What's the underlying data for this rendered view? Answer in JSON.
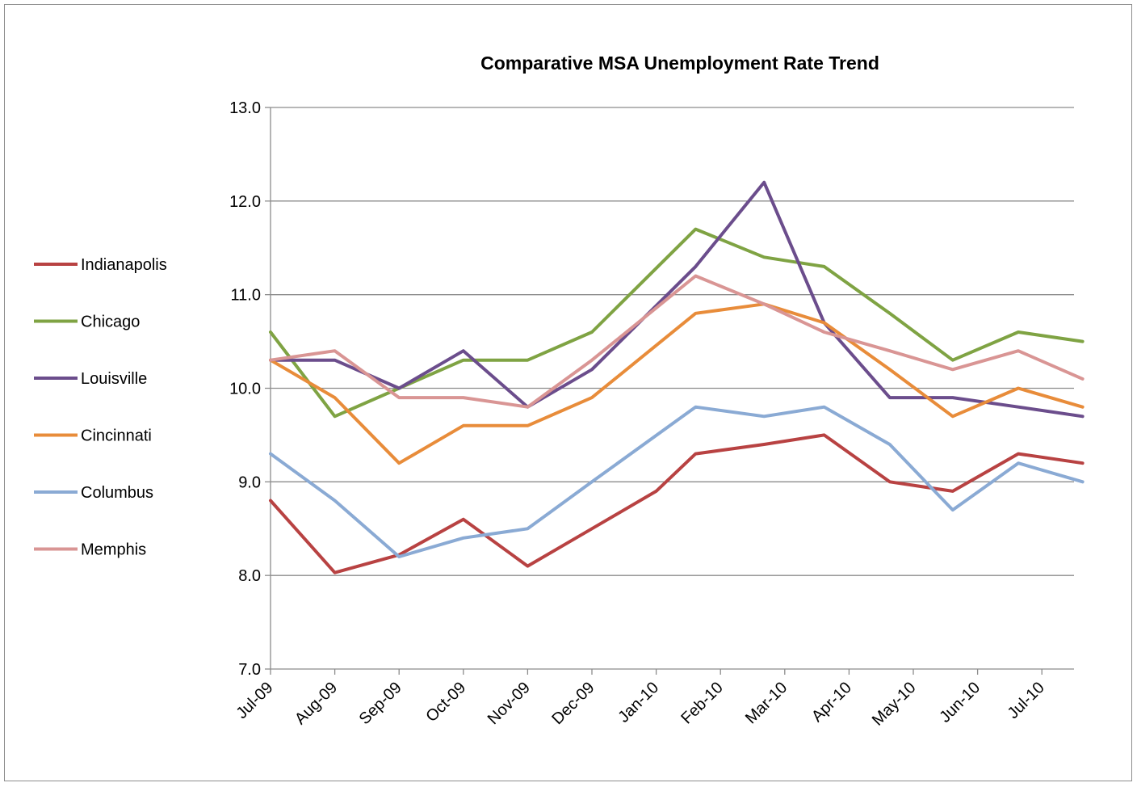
{
  "chart_data": {
    "type": "line",
    "title": "Comparative MSA Unemployment Rate Trend",
    "xlabel": "",
    "ylabel": "",
    "ylim": [
      7.0,
      13.0
    ],
    "y_ticks": [
      "7.0",
      "8.0",
      "9.0",
      "10.0",
      "11.0",
      "12.0",
      "13.0"
    ],
    "x_tick_labels": [
      "Jul-09",
      "Aug-09",
      "Sep-09",
      "Oct-09",
      "Nov-09",
      "Dec-09",
      "Jan-10",
      "Feb-10",
      "Mar-10",
      "Apr-10",
      "May-10",
      "Jun-10",
      "Jul-10"
    ],
    "grid": "horizontal",
    "legend_position": "left",
    "series": [
      {
        "name": "Indianapolis",
        "color": "#b84242",
        "points": [
          [
            "2009-07-01",
            8.8
          ],
          [
            "2009-08-01",
            8.03
          ],
          [
            "2009-09-01",
            8.22
          ],
          [
            "2009-10-01",
            8.6
          ],
          [
            "2009-11-01",
            8.1
          ],
          [
            "2009-12-01",
            8.5
          ],
          [
            "2010-01-01",
            8.9
          ],
          [
            "2010-01-20",
            9.3
          ],
          [
            "2010-02-20",
            9.4
          ],
          [
            "2010-03-20",
            9.5
          ],
          [
            "2010-04-20",
            9.0
          ],
          [
            "2010-05-20",
            8.9
          ],
          [
            "2010-06-20",
            9.3
          ],
          [
            "2010-07-20",
            9.2
          ]
        ]
      },
      {
        "name": "Chicago",
        "color": "#7fa343",
        "points": [
          [
            "2009-07-01",
            10.6
          ],
          [
            "2009-08-01",
            9.7
          ],
          [
            "2009-09-01",
            10.0
          ],
          [
            "2009-10-01",
            10.3
          ],
          [
            "2009-11-01",
            10.3
          ],
          [
            "2009-12-01",
            10.6
          ],
          [
            "2010-01-20",
            11.7
          ],
          [
            "2010-02-20",
            11.4
          ],
          [
            "2010-03-20",
            11.3
          ],
          [
            "2010-04-20",
            10.8
          ],
          [
            "2010-05-20",
            10.3
          ],
          [
            "2010-06-20",
            10.6
          ],
          [
            "2010-07-20",
            10.5
          ]
        ]
      },
      {
        "name": "Louisville",
        "color": "#6b4d8c",
        "points": [
          [
            "2009-07-01",
            10.3
          ],
          [
            "2009-08-01",
            10.3
          ],
          [
            "2009-09-01",
            10.0
          ],
          [
            "2009-10-01",
            10.4
          ],
          [
            "2009-11-01",
            9.8
          ],
          [
            "2009-12-01",
            10.2
          ],
          [
            "2010-01-20",
            11.3
          ],
          [
            "2010-02-20",
            12.2
          ],
          [
            "2010-03-20",
            10.7
          ],
          [
            "2010-04-20",
            9.9
          ],
          [
            "2010-05-20",
            9.9
          ],
          [
            "2010-06-20",
            9.8
          ],
          [
            "2010-07-20",
            9.7
          ]
        ]
      },
      {
        "name": "Cincinnati",
        "color": "#e88c3a",
        "points": [
          [
            "2009-07-01",
            10.3
          ],
          [
            "2009-08-01",
            9.9
          ],
          [
            "2009-09-01",
            9.2
          ],
          [
            "2009-10-01",
            9.6
          ],
          [
            "2009-11-01",
            9.6
          ],
          [
            "2009-12-01",
            9.9
          ],
          [
            "2010-01-20",
            10.8
          ],
          [
            "2010-02-20",
            10.9
          ],
          [
            "2010-03-20",
            10.7
          ],
          [
            "2010-04-20",
            10.2
          ],
          [
            "2010-05-20",
            9.7
          ],
          [
            "2010-06-20",
            10.0
          ],
          [
            "2010-07-20",
            9.8
          ]
        ]
      },
      {
        "name": "Columbus",
        "color": "#8aaad4",
        "points": [
          [
            "2009-07-01",
            9.3
          ],
          [
            "2009-08-01",
            8.8
          ],
          [
            "2009-09-01",
            8.2
          ],
          [
            "2009-10-01",
            8.4
          ],
          [
            "2009-11-01",
            8.5
          ],
          [
            "2009-12-01",
            9.0
          ],
          [
            "2010-01-20",
            9.8
          ],
          [
            "2010-02-20",
            9.7
          ],
          [
            "2010-03-20",
            9.8
          ],
          [
            "2010-04-20",
            9.4
          ],
          [
            "2010-05-20",
            8.7
          ],
          [
            "2010-06-20",
            9.2
          ],
          [
            "2010-07-20",
            9.0
          ]
        ]
      },
      {
        "name": "Memphis",
        "color": "#d99594",
        "points": [
          [
            "2009-07-01",
            10.3
          ],
          [
            "2009-08-01",
            10.4
          ],
          [
            "2009-09-01",
            9.9
          ],
          [
            "2009-10-01",
            9.9
          ],
          [
            "2009-11-01",
            9.8
          ],
          [
            "2009-12-01",
            10.3
          ],
          [
            "2010-01-20",
            11.2
          ],
          [
            "2010-02-20",
            10.9
          ],
          [
            "2010-03-20",
            10.6
          ],
          [
            "2010-04-20",
            10.4
          ],
          [
            "2010-05-20",
            10.2
          ],
          [
            "2010-06-20",
            10.4
          ],
          [
            "2010-07-20",
            10.1
          ]
        ]
      }
    ]
  }
}
